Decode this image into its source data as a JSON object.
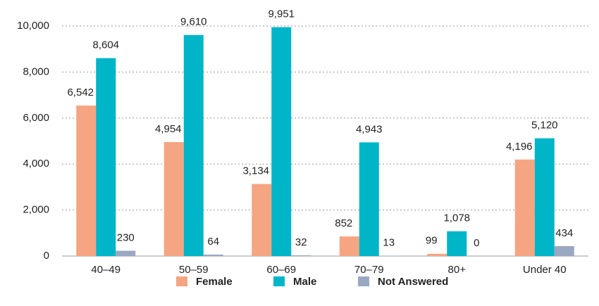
{
  "chart_data": {
    "type": "bar",
    "categories": [
      "40–49",
      "50–59",
      "60–69",
      "70–79",
      "80+",
      "Under 40"
    ],
    "series": [
      {
        "name": "Female",
        "color": "#f5a582",
        "values": [
          6542,
          4954,
          3134,
          852,
          99,
          4196
        ],
        "value_labels": [
          "6,542",
          "4,954",
          "3,134",
          "852",
          "99",
          "4,196"
        ]
      },
      {
        "name": "Male",
        "color": "#00b5c8",
        "values": [
          8604,
          9610,
          9951,
          4943,
          1078,
          5120
        ],
        "value_labels": [
          "8,604",
          "9,610",
          "9,951",
          "4,943",
          "1,078",
          "5,120"
        ]
      },
      {
        "name": "Not Answered",
        "color": "#9aa8c2",
        "values": [
          230,
          64,
          32,
          13,
          0,
          434
        ],
        "value_labels": [
          "230",
          "64",
          "32",
          "13",
          "0",
          "434"
        ]
      }
    ],
    "ylim": [
      0,
      10000
    ],
    "yticks": [
      0,
      {
        "value": 2000,
        "label": "2,000"
      },
      {
        "value": 4000,
        "label": "4,000"
      },
      {
        "value": 6000,
        "label": "6,000"
      },
      {
        "value": 8000,
        "label": "8,000"
      },
      {
        "value": 10000,
        "label": "10,000"
      }
    ],
    "grid": true,
    "legend": "bottom"
  }
}
